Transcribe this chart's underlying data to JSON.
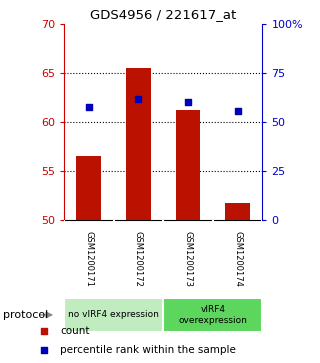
{
  "title": "GDS4956 / 221617_at",
  "samples": [
    "GSM1200171",
    "GSM1200172",
    "GSM1200173",
    "GSM1200174"
  ],
  "red_values": [
    56.5,
    65.5,
    61.2,
    51.7
  ],
  "blue_values": [
    61.5,
    62.3,
    62.0,
    61.1
  ],
  "ylim_left": [
    50,
    70
  ],
  "ylim_right": [
    0,
    100
  ],
  "yticks_left": [
    50,
    55,
    60,
    65,
    70
  ],
  "yticks_right": [
    0,
    25,
    50,
    75,
    100
  ],
  "ytick_labels_right": [
    "0",
    "25",
    "50",
    "75",
    "100%"
  ],
  "dotted_lines": [
    55,
    60,
    65
  ],
  "groups": [
    {
      "label": "no vIRF4 expression",
      "samples": [
        0,
        1
      ],
      "color": "#c0ecc0"
    },
    {
      "label": "vIRF4\noverexpression",
      "samples": [
        2,
        3
      ],
      "color": "#5cd65c"
    }
  ],
  "bar_color": "#bb1100",
  "dot_color": "#0000bb",
  "bg_color": "#ffffff",
  "label_color_left": "#cc0000",
  "label_color_right": "#0000cc",
  "legend_count_label": "count",
  "legend_pct_label": "percentile rank within the sample",
  "protocol_label": "protocol",
  "sample_box_color": "#c8c8c8",
  "bar_width": 0.5
}
